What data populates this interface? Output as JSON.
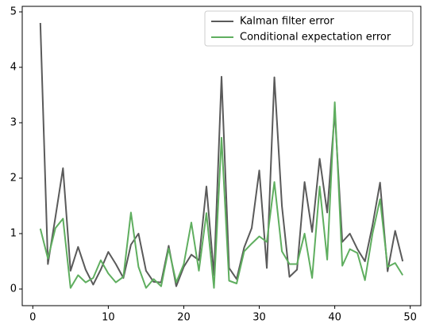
{
  "chart_data": {
    "type": "line",
    "x": [
      1,
      2,
      3,
      4,
      5,
      6,
      7,
      8,
      9,
      10,
      11,
      12,
      13,
      14,
      15,
      16,
      17,
      18,
      19,
      20,
      21,
      22,
      23,
      24,
      25,
      26,
      27,
      28,
      29,
      30,
      31,
      32,
      33,
      34,
      35,
      36,
      37,
      38,
      39,
      40,
      41,
      42,
      43,
      44,
      45,
      46,
      47,
      48,
      49
    ],
    "series": [
      {
        "name": "Kalman filter error",
        "color": "#5a5a5a",
        "values": [
          4.8,
          0.45,
          1.3,
          2.18,
          0.33,
          0.76,
          0.35,
          0.08,
          0.35,
          0.67,
          0.45,
          0.2,
          0.8,
          1.0,
          0.33,
          0.13,
          0.12,
          0.78,
          0.05,
          0.4,
          0.62,
          0.52,
          1.85,
          0.25,
          3.83,
          0.38,
          0.18,
          0.75,
          1.1,
          2.14,
          0.38,
          3.82,
          1.5,
          0.22,
          0.35,
          1.93,
          1.03,
          2.35,
          1.38,
          3.2,
          0.85,
          1.0,
          0.72,
          0.5,
          1.15,
          1.92,
          0.32,
          1.05,
          0.5
        ]
      },
      {
        "name": "Conditional expectation error",
        "color": "#5fae5f",
        "values": [
          1.09,
          0.55,
          1.1,
          1.27,
          0.02,
          0.25,
          0.12,
          0.2,
          0.52,
          0.28,
          0.12,
          0.22,
          1.38,
          0.4,
          0.02,
          0.18,
          0.05,
          0.73,
          0.12,
          0.45,
          1.2,
          0.33,
          1.37,
          0.02,
          2.73,
          0.15,
          0.1,
          0.68,
          0.82,
          0.95,
          0.85,
          1.93,
          0.68,
          0.45,
          0.45,
          1.0,
          0.2,
          1.85,
          0.53,
          3.37,
          0.42,
          0.72,
          0.65,
          0.16,
          1.0,
          1.62,
          0.4,
          0.47,
          0.25
        ]
      }
    ],
    "xlim": [
      -1.4,
      51.4
    ],
    "xticks": [
      0,
      10,
      20,
      30,
      40,
      50
    ],
    "ylim": [
      -0.3,
      5.1
    ],
    "yticks": [
      0,
      1,
      2,
      3,
      4,
      5
    ],
    "legend": "upper right"
  }
}
